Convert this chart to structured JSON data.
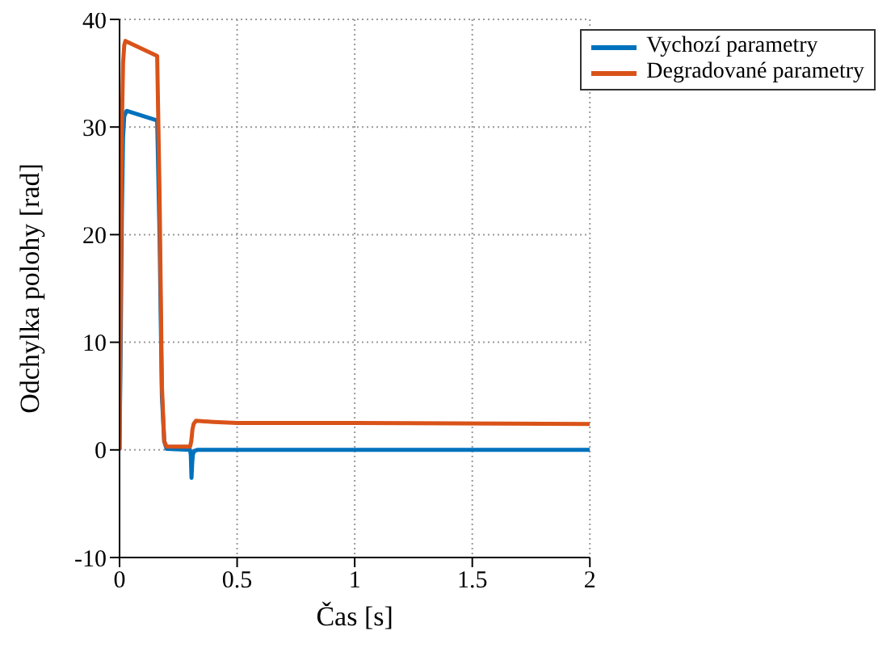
{
  "chart_data": {
    "type": "line",
    "xlabel": "Čas [s]",
    "ylabel": "Odchylka polohy [rad]",
    "xlim": [
      0,
      2
    ],
    "xticks": [
      0,
      0.5,
      1,
      1.5,
      2
    ],
    "ylim": [
      -10,
      40
    ],
    "yticks": [
      -10,
      0,
      10,
      20,
      30,
      40
    ],
    "grid": true,
    "legend": "top right",
    "marker": "none",
    "line_style": "solid",
    "series": [
      {
        "name": "Vychozí parametry",
        "color": "#0072bd",
        "x": [
          0,
          0.005,
          0.01,
          0.015,
          0.02,
          0.03,
          0.16,
          0.17,
          0.18,
          0.19,
          0.2,
          0.3,
          0.303,
          0.306,
          0.309,
          0.312,
          0.318,
          0.33,
          0.4,
          1,
          2
        ],
        "values": [
          0,
          10,
          22,
          29,
          31,
          31.5,
          30.6,
          20,
          5,
          0.8,
          0.1,
          0,
          -0.5,
          -2.6,
          -1.2,
          -0.4,
          -0.1,
          0,
          0,
          0,
          0
        ]
      },
      {
        "name": "Degradované parametry",
        "color": "#d95319",
        "x": [
          0,
          0.005,
          0.01,
          0.015,
          0.02,
          0.025,
          0.16,
          0.17,
          0.18,
          0.19,
          0.2,
          0.3,
          0.305,
          0.31,
          0.315,
          0.325,
          0.4,
          0.5,
          1,
          2
        ],
        "values": [
          0,
          15,
          30,
          36,
          37.6,
          38,
          36.6,
          24,
          6,
          0.8,
          0.3,
          0.3,
          0.8,
          1.9,
          2.4,
          2.7,
          2.6,
          2.5,
          2.5,
          2.4
        ]
      }
    ]
  }
}
